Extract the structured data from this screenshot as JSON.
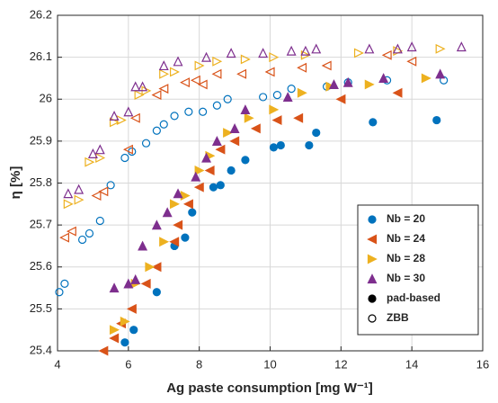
{
  "chart_data": {
    "type": "scatter",
    "xlabel": "Ag paste consumption [mg W⁻¹]",
    "ylabel": "η [%]",
    "xlim": [
      4,
      16
    ],
    "xticks": [
      4,
      6,
      8,
      10,
      12,
      14,
      16
    ],
    "ylim": [
      25.4,
      26.2
    ],
    "yticks": [
      25.4,
      25.5,
      25.6,
      25.7,
      25.8,
      25.9,
      26,
      26.1,
      26.2
    ],
    "grid": true,
    "legend": "lower right",
    "style_legend": [
      {
        "label": "pad-based",
        "filled": true,
        "color": "#000000"
      },
      {
        "label": "ZBB",
        "filled": false,
        "color": "#000000"
      }
    ],
    "series": [
      {
        "name": "Nb = 20",
        "color": "#0072bd",
        "marker": "circle",
        "pad_based": {
          "filled": true,
          "x": [
            5.9,
            6.15,
            6.8,
            7.3,
            7.6,
            7.8,
            8.4,
            8.6,
            8.9,
            9.3,
            10.1,
            10.3,
            11.1,
            11.3,
            12.9,
            14.7
          ],
          "y": [
            25.42,
            25.45,
            25.54,
            25.65,
            25.67,
            25.73,
            25.79,
            25.795,
            25.83,
            25.855,
            25.885,
            25.89,
            25.89,
            25.92,
            25.945,
            25.95
          ]
        },
        "zbb": {
          "filled": false,
          "x": [
            4.05,
            4.2,
            4.7,
            4.9,
            5.2,
            5.5,
            5.9,
            6.1,
            6.5,
            6.8,
            7.0,
            7.3,
            7.7,
            8.1,
            8.5,
            8.8,
            9.8,
            10.2,
            10.6,
            11.6,
            12.2,
            13.3,
            14.9
          ],
          "y": [
            25.54,
            25.56,
            25.665,
            25.68,
            25.71,
            25.795,
            25.86,
            25.875,
            25.895,
            25.925,
            25.94,
            25.96,
            25.97,
            25.97,
            25.985,
            26.0,
            26.005,
            26.01,
            26.025,
            26.03,
            26.04,
            26.045,
            26.045
          ]
        }
      },
      {
        "name": "Nb = 24",
        "color": "#d95319",
        "marker": "triangle-left",
        "pad_based": {
          "filled": true,
          "x": [
            5.3,
            5.6,
            5.8,
            6.1,
            6.5,
            6.8,
            7.3,
            7.4,
            7.7,
            8.0,
            8.3,
            8.6,
            9.0,
            9.6,
            10.2,
            10.8,
            12.0,
            13.6
          ],
          "y": [
            25.4,
            25.43,
            25.465,
            25.5,
            25.56,
            25.6,
            25.66,
            25.7,
            25.75,
            25.79,
            25.83,
            25.88,
            25.9,
            25.93,
            25.95,
            25.955,
            26.0,
            26.015
          ]
        },
        "zbb": {
          "filled": false,
          "x": [
            4.2,
            4.4,
            5.1,
            5.3,
            6.0,
            6.2,
            6.8,
            7.0,
            7.6,
            7.9,
            8.1,
            8.5,
            9.2,
            10.0,
            10.9,
            11.6,
            13.3,
            14.0
          ],
          "y": [
            25.67,
            25.685,
            25.77,
            25.78,
            25.88,
            25.955,
            26.01,
            26.025,
            26.04,
            26.045,
            26.035,
            26.06,
            26.06,
            26.065,
            26.075,
            26.08,
            26.105,
            26.09
          ]
        }
      },
      {
        "name": "Nb = 28",
        "color": "#edb120",
        "marker": "triangle-right",
        "pad_based": {
          "filled": true,
          "x": [
            5.6,
            5.9,
            6.2,
            6.6,
            7.0,
            7.3,
            7.6,
            8.0,
            8.3,
            8.8,
            9.4,
            10.1,
            10.9,
            11.7,
            12.8,
            14.4
          ],
          "y": [
            25.45,
            25.47,
            25.56,
            25.6,
            25.66,
            25.75,
            25.77,
            25.83,
            25.865,
            25.92,
            25.955,
            25.975,
            26.015,
            26.03,
            26.035,
            26.05
          ]
        },
        "zbb": {
          "filled": false,
          "x": [
            4.3,
            4.6,
            4.9,
            5.2,
            5.6,
            5.8,
            6.3,
            6.5,
            7.0,
            7.3,
            8.0,
            8.5,
            9.3,
            10.1,
            11.0,
            12.5,
            13.6,
            14.8
          ],
          "y": [
            25.75,
            25.76,
            25.85,
            25.86,
            25.945,
            25.95,
            26.01,
            26.02,
            26.06,
            26.065,
            26.08,
            26.09,
            26.095,
            26.1,
            26.105,
            26.11,
            26.115,
            26.12
          ]
        }
      },
      {
        "name": "Nb = 30",
        "color": "#7e2f8e",
        "marker": "triangle-up",
        "pad_based": {
          "filled": true,
          "x": [
            5.6,
            6.0,
            6.2,
            6.4,
            6.8,
            7.1,
            7.4,
            7.9,
            8.2,
            8.5,
            9.0,
            9.3,
            10.5,
            11.8,
            12.2,
            13.2,
            14.8
          ],
          "y": [
            25.55,
            25.56,
            25.57,
            25.65,
            25.7,
            25.73,
            25.775,
            25.815,
            25.86,
            25.9,
            25.93,
            25.975,
            26.005,
            26.035,
            26.04,
            26.05,
            26.06
          ]
        },
        "zbb": {
          "filled": false,
          "x": [
            4.3,
            4.6,
            5.0,
            5.2,
            5.6,
            6.0,
            6.2,
            6.4,
            7.0,
            7.4,
            8.2,
            8.9,
            9.8,
            10.6,
            11.0,
            11.3,
            12.8,
            13.6,
            14.0,
            15.4
          ],
          "y": [
            25.775,
            25.785,
            25.87,
            25.88,
            25.96,
            25.97,
            26.03,
            26.03,
            26.08,
            26.09,
            26.1,
            26.11,
            26.11,
            26.115,
            26.115,
            26.12,
            26.12,
            26.12,
            26.125,
            26.125
          ]
        }
      }
    ]
  }
}
